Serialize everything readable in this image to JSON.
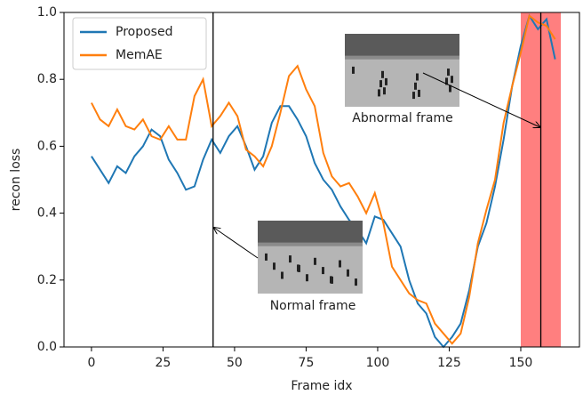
{
  "chart_data": {
    "type": "line",
    "x_label": "Frame idx",
    "y_label": "recon loss",
    "x": [
      0,
      3,
      6,
      9,
      12,
      15,
      18,
      21,
      24,
      27,
      30,
      33,
      36,
      39,
      42,
      45,
      48,
      51,
      54,
      57,
      60,
      63,
      66,
      69,
      72,
      75,
      78,
      81,
      84,
      87,
      90,
      93,
      96,
      99,
      102,
      105,
      108,
      111,
      114,
      117,
      120,
      123,
      126,
      129,
      132,
      135,
      138,
      141,
      144,
      147,
      150,
      153,
      156,
      159,
      162
    ],
    "series": [
      {
        "name": "Proposed",
        "color": "#1f77b4",
        "values": [
          0.57,
          0.53,
          0.49,
          0.54,
          0.52,
          0.57,
          0.6,
          0.65,
          0.63,
          0.56,
          0.52,
          0.47,
          0.48,
          0.56,
          0.62,
          0.58,
          0.63,
          0.66,
          0.6,
          0.53,
          0.57,
          0.67,
          0.72,
          0.72,
          0.68,
          0.63,
          0.55,
          0.5,
          0.47,
          0.42,
          0.38,
          0.35,
          0.31,
          0.39,
          0.38,
          0.34,
          0.3,
          0.2,
          0.13,
          0.1,
          0.03,
          0.0,
          0.03,
          0.07,
          0.17,
          0.3,
          0.37,
          0.48,
          0.62,
          0.78,
          0.9,
          0.99,
          0.95,
          0.98,
          0.86
        ]
      },
      {
        "name": "MemAE",
        "color": "#ff7f0e",
        "values": [
          0.73,
          0.68,
          0.66,
          0.71,
          0.66,
          0.65,
          0.68,
          0.63,
          0.62,
          0.66,
          0.62,
          0.62,
          0.75,
          0.8,
          0.66,
          0.69,
          0.73,
          0.69,
          0.59,
          0.57,
          0.54,
          0.6,
          0.7,
          0.81,
          0.84,
          0.77,
          0.72,
          0.58,
          0.51,
          0.48,
          0.49,
          0.45,
          0.4,
          0.46,
          0.37,
          0.24,
          0.2,
          0.16,
          0.14,
          0.13,
          0.07,
          0.04,
          0.01,
          0.04,
          0.15,
          0.31,
          0.41,
          0.5,
          0.67,
          0.78,
          0.88,
          0.99,
          0.97,
          0.96,
          0.92
        ]
      }
    ],
    "highlight_span": [
      150,
      164
    ],
    "highlight_color": "#ff7f7f",
    "marker_lines": [
      42.5,
      157
    ],
    "annotations": [
      {
        "text": "Normal frame"
      },
      {
        "text": "Abnormal frame"
      }
    ],
    "xlim": [
      -9.6,
      170.5
    ],
    "ylim": [
      0,
      1
    ],
    "xticks": [
      0,
      25,
      50,
      75,
      100,
      125,
      150
    ],
    "yticks": [
      {
        "value": 0,
        "label": "0.0"
      },
      0.2,
      0.4,
      0.6,
      0.8,
      {
        "value": 1,
        "label": "1.0"
      }
    ],
    "legend": "upper left",
    "grid": false
  }
}
